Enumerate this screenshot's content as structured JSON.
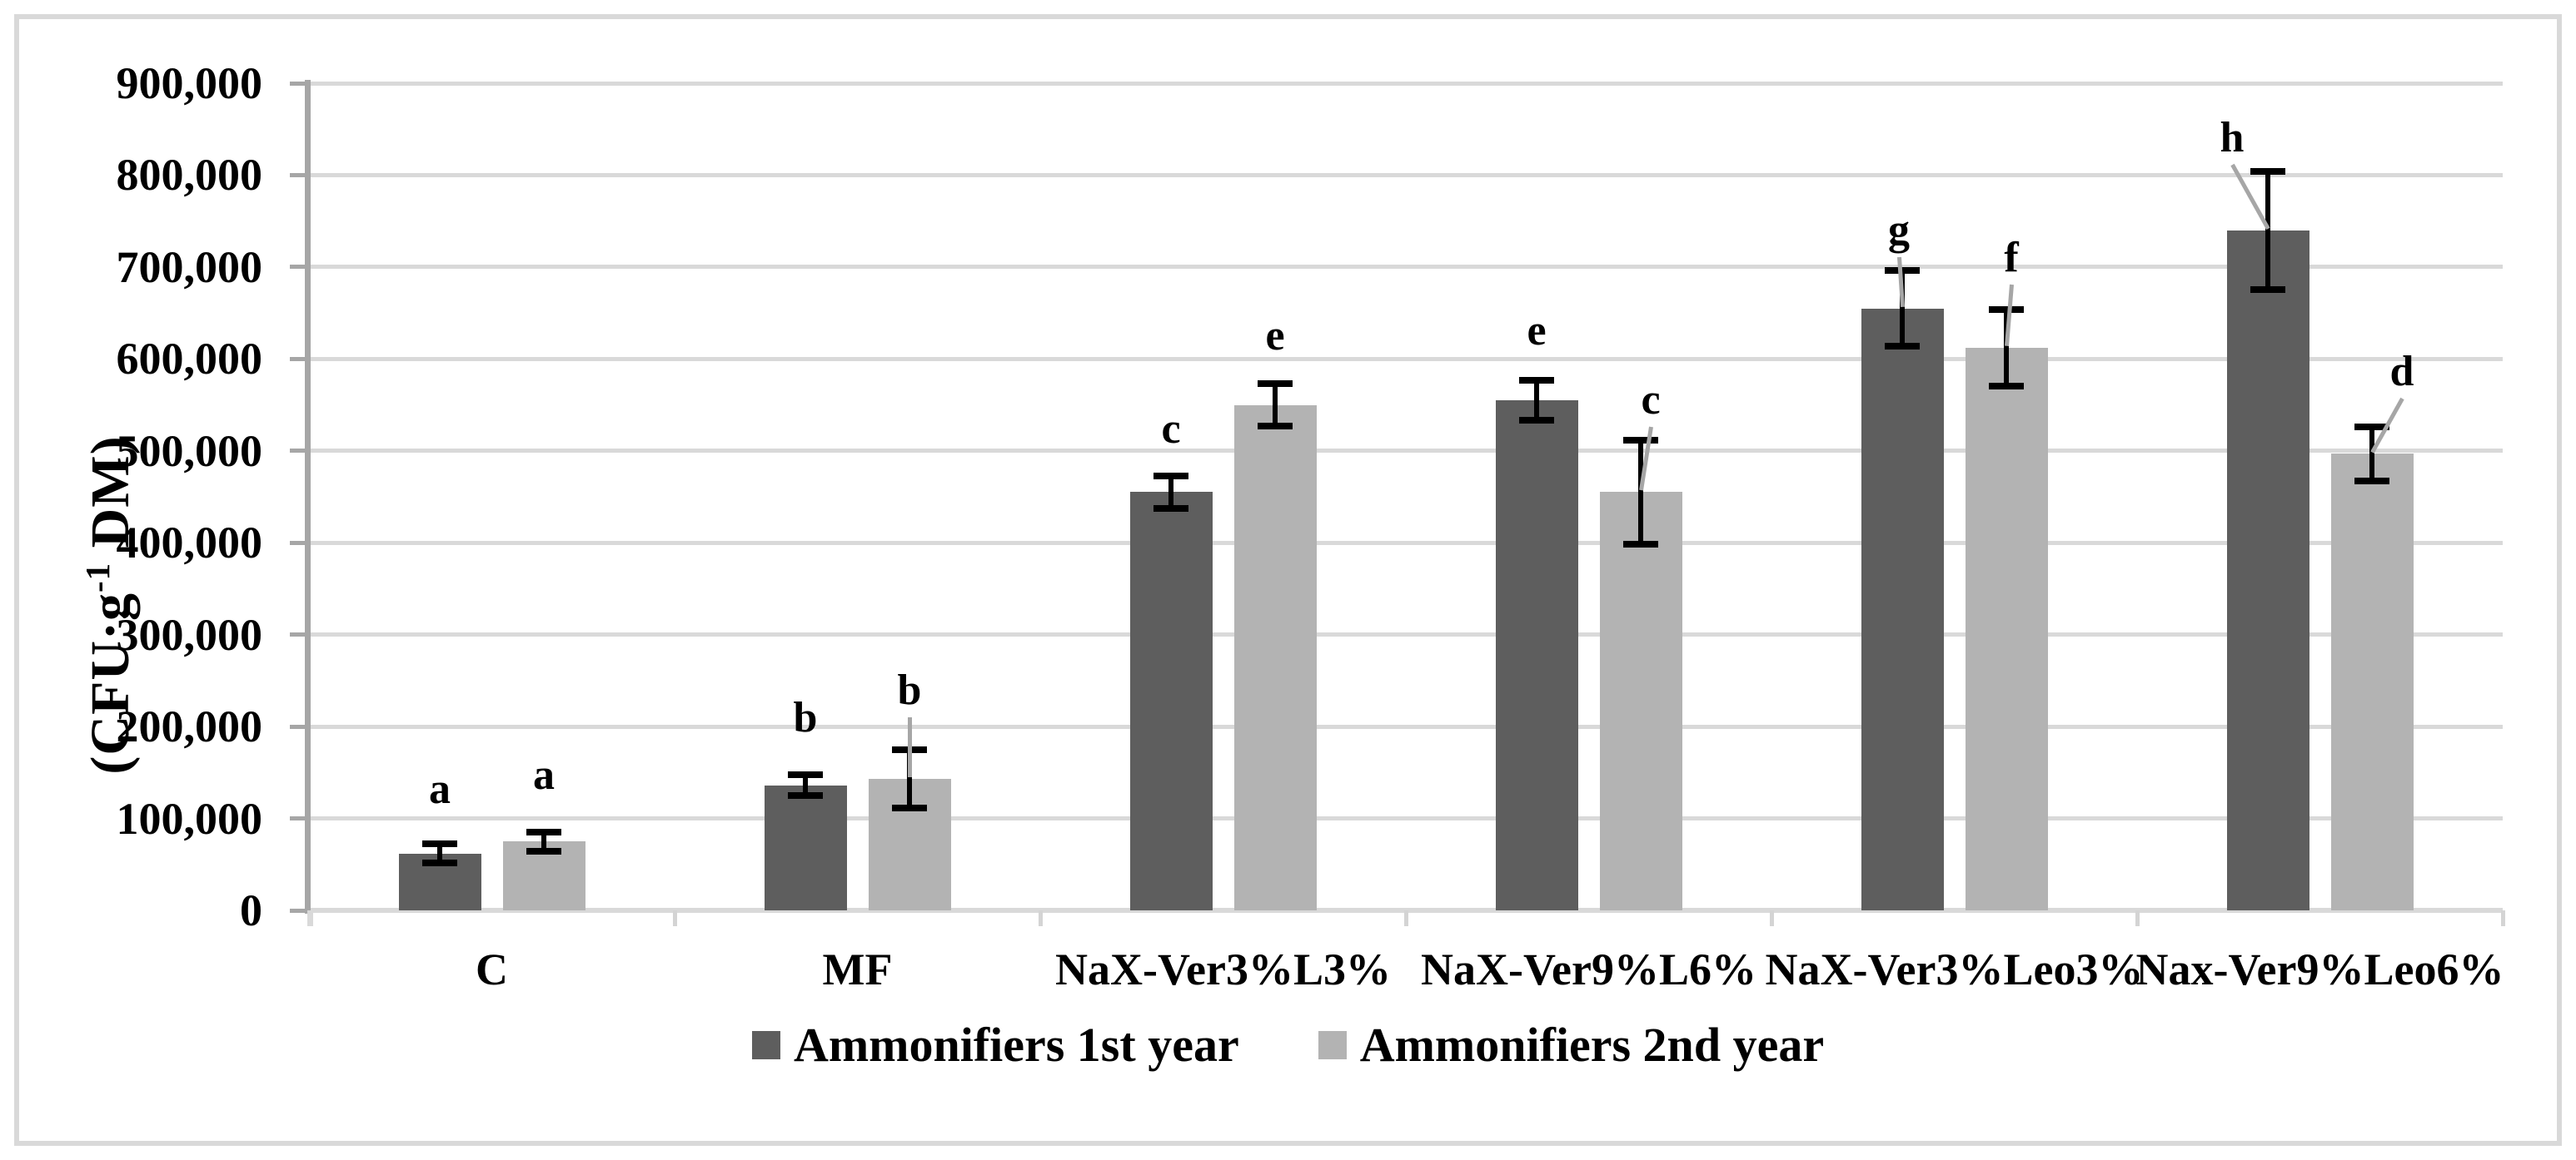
{
  "chart_data": {
    "type": "bar",
    "title": "",
    "ylabel": "(CFU·g⁻¹ DM)",
    "ylabel_parts": {
      "pre": "(CFU·g",
      "sup": "-1",
      "post": " DM)"
    },
    "xlabel": "",
    "ylim": [
      0,
      900000
    ],
    "ytick_interval": 100000,
    "ytick_labels": [
      "0",
      "100,000",
      "200,000",
      "300,000",
      "400,000",
      "500,000",
      "600,000",
      "700,000",
      "800,000",
      "900,000"
    ],
    "grid": true,
    "legend_position": "bottom-center",
    "categories": [
      "C",
      "MF",
      "NaX-Ver3%L3%",
      "NaX-Ver9%L6%",
      "NaX-Ver3%Leo3%",
      "Nax-Ver9%Leo6%"
    ],
    "series": [
      {
        "name": "Ammonifiers 1st year",
        "color": "#5e5e5e",
        "values": [
          62000,
          136000,
          455000,
          555000,
          655000,
          740000
        ],
        "errors": [
          14000,
          15000,
          21000,
          25000,
          45000,
          68000
        ],
        "sig_letters": [
          "a",
          "b",
          "c",
          "e",
          "g",
          "h"
        ]
      },
      {
        "name": "Ammonifiers 2nd year",
        "color": "#b3b3b3",
        "values": [
          75000,
          143000,
          550000,
          455000,
          612000,
          497000
        ],
        "errors": [
          14000,
          35000,
          27000,
          60000,
          45000,
          33000
        ],
        "sig_letters": [
          "a",
          "b",
          "e",
          "c",
          "f",
          "d"
        ]
      }
    ],
    "annotation_layout": {
      "dx": [
        [
          0,
          0,
          0,
          0,
          -4,
          -43
        ],
        [
          0,
          0,
          0,
          12,
          6,
          36
        ]
      ],
      "gap": [
        [
          35,
          38,
          26,
          29,
          18,
          10
        ],
        [
          38,
          41,
          27,
          18,
          32,
          36
        ]
      ],
      "leader": [
        [
          false,
          false,
          false,
          false,
          true,
          true
        ],
        [
          false,
          true,
          false,
          true,
          true,
          true
        ]
      ]
    },
    "colors": {
      "grid": "#d9d9d9",
      "axis": "#a6a6a6",
      "error_bar": "#000000",
      "leader_line": "#a6a6a6",
      "frame_border": "#d9d9d9",
      "background": "#ffffff",
      "text": "#000000"
    }
  },
  "legend": {
    "items": [
      {
        "label": "Ammonifiers 1st year",
        "color": "#5e5e5e"
      },
      {
        "label": "Ammonifiers 2nd year",
        "color": "#b3b3b3"
      }
    ]
  }
}
